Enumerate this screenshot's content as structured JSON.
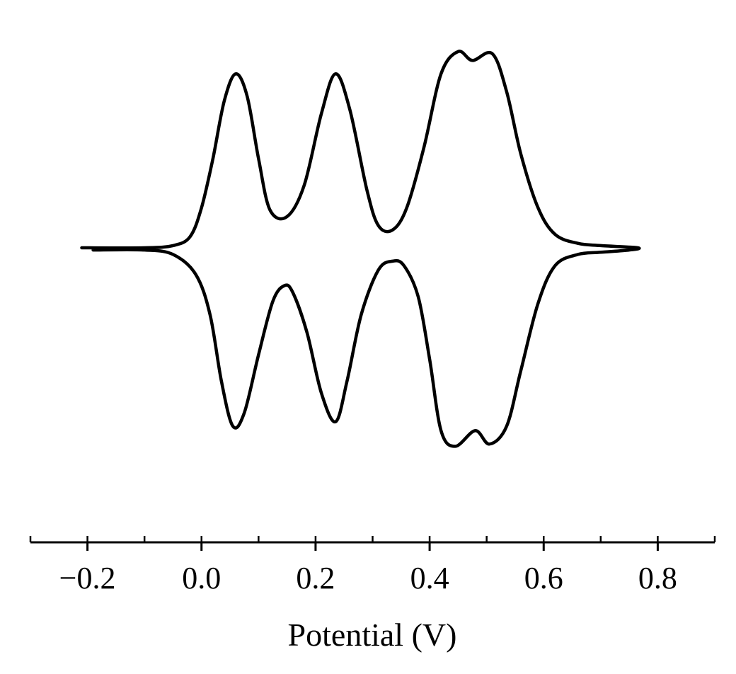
{
  "chart_data": {
    "type": "line",
    "title": "",
    "xlabel": "Potential (V)",
    "ylabel": "",
    "xlim": [
      -0.3,
      0.9
    ],
    "ylim": [
      -1.0,
      1.0
    ],
    "x_ticks": [
      -0.2,
      0.0,
      0.2,
      0.4,
      0.6,
      0.8
    ],
    "x_tick_labels": [
      "−0.2",
      "0.0",
      "0.2",
      "0.4",
      "0.6",
      "0.8"
    ],
    "x_minor_step": 0.1,
    "y_axis_visible": false,
    "grid": false,
    "legend": "none",
    "line_color": "#000000",
    "series": [
      {
        "values": [
          [
            -0.21,
            0.0
          ],
          [
            -0.1,
            0.0
          ],
          [
            -0.05,
            0.01
          ],
          [
            -0.02,
            0.05
          ],
          [
            0.0,
            0.18
          ],
          [
            0.02,
            0.4
          ],
          [
            0.04,
            0.66
          ],
          [
            0.06,
            0.78
          ],
          [
            0.08,
            0.68
          ],
          [
            0.1,
            0.4
          ],
          [
            0.12,
            0.17
          ],
          [
            0.15,
            0.14
          ],
          [
            0.18,
            0.28
          ],
          [
            0.21,
            0.6
          ],
          [
            0.235,
            0.78
          ],
          [
            0.26,
            0.62
          ],
          [
            0.29,
            0.26
          ],
          [
            0.31,
            0.1
          ],
          [
            0.335,
            0.08
          ],
          [
            0.36,
            0.18
          ],
          [
            0.39,
            0.45
          ],
          [
            0.42,
            0.78
          ],
          [
            0.45,
            0.88
          ],
          [
            0.475,
            0.84
          ],
          [
            0.51,
            0.87
          ],
          [
            0.535,
            0.7
          ],
          [
            0.56,
            0.42
          ],
          [
            0.59,
            0.18
          ],
          [
            0.62,
            0.06
          ],
          [
            0.66,
            0.02
          ],
          [
            0.7,
            0.01
          ],
          [
            0.765,
            0.0
          ],
          [
            0.75,
            -0.01
          ],
          [
            0.7,
            -0.02
          ],
          [
            0.66,
            -0.03
          ],
          [
            0.62,
            -0.08
          ],
          [
            0.59,
            -0.25
          ],
          [
            0.56,
            -0.55
          ],
          [
            0.535,
            -0.8
          ],
          [
            0.505,
            -0.88
          ],
          [
            0.48,
            -0.82
          ],
          [
            0.445,
            -0.89
          ],
          [
            0.42,
            -0.82
          ],
          [
            0.4,
            -0.5
          ],
          [
            0.38,
            -0.22
          ],
          [
            0.355,
            -0.08
          ],
          [
            0.335,
            -0.06
          ],
          [
            0.31,
            -0.1
          ],
          [
            0.28,
            -0.3
          ],
          [
            0.255,
            -0.6
          ],
          [
            0.235,
            -0.78
          ],
          [
            0.21,
            -0.65
          ],
          [
            0.185,
            -0.38
          ],
          [
            0.16,
            -0.2
          ],
          [
            0.145,
            -0.17
          ],
          [
            0.125,
            -0.24
          ],
          [
            0.1,
            -0.48
          ],
          [
            0.075,
            -0.74
          ],
          [
            0.055,
            -0.8
          ],
          [
            0.035,
            -0.6
          ],
          [
            0.015,
            -0.3
          ],
          [
            -0.01,
            -0.12
          ],
          [
            -0.05,
            -0.03
          ],
          [
            -0.1,
            -0.01
          ],
          [
            -0.19,
            -0.01
          ]
        ]
      }
    ]
  }
}
